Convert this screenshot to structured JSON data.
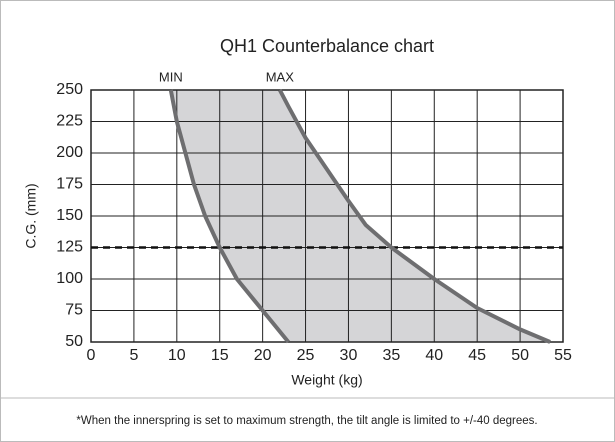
{
  "chart_data": {
    "type": "line",
    "title": "QH1 Counterbalance chart",
    "x_label": "Weight (kg)",
    "y_label": "C.G. (mm)",
    "footnote": "*When the innerspring is set to maximum strength, the tilt angle is limited to +/-40 degrees.",
    "series": [
      {
        "name": "MIN",
        "color": "#6e6e70",
        "x": [
          9.3,
          10,
          11,
          12,
          13.3,
          15,
          17,
          20,
          23
        ],
        "values": [
          250,
          225,
          200,
          175,
          150,
          125,
          100,
          75,
          50
        ]
      },
      {
        "name": "MAX",
        "color": "#6e6e70",
        "x": [
          22,
          23,
          25,
          27.5,
          30,
          32,
          35,
          40,
          45,
          50,
          53.5
        ],
        "values": [
          250,
          237,
          212,
          187,
          162,
          143,
          125,
          100,
          77,
          60,
          50
        ]
      }
    ],
    "fill_color": "#d5d5d7",
    "reference_line": 125,
    "xlim": [
      0,
      55
    ],
    "xticks": [
      0,
      5,
      10,
      15,
      20,
      25,
      30,
      35,
      40,
      45,
      50,
      55
    ],
    "ylim": [
      50,
      250
    ],
    "yticks": [
      50,
      75,
      100,
      125,
      150,
      175,
      200,
      225,
      250
    ],
    "grid": true
  }
}
